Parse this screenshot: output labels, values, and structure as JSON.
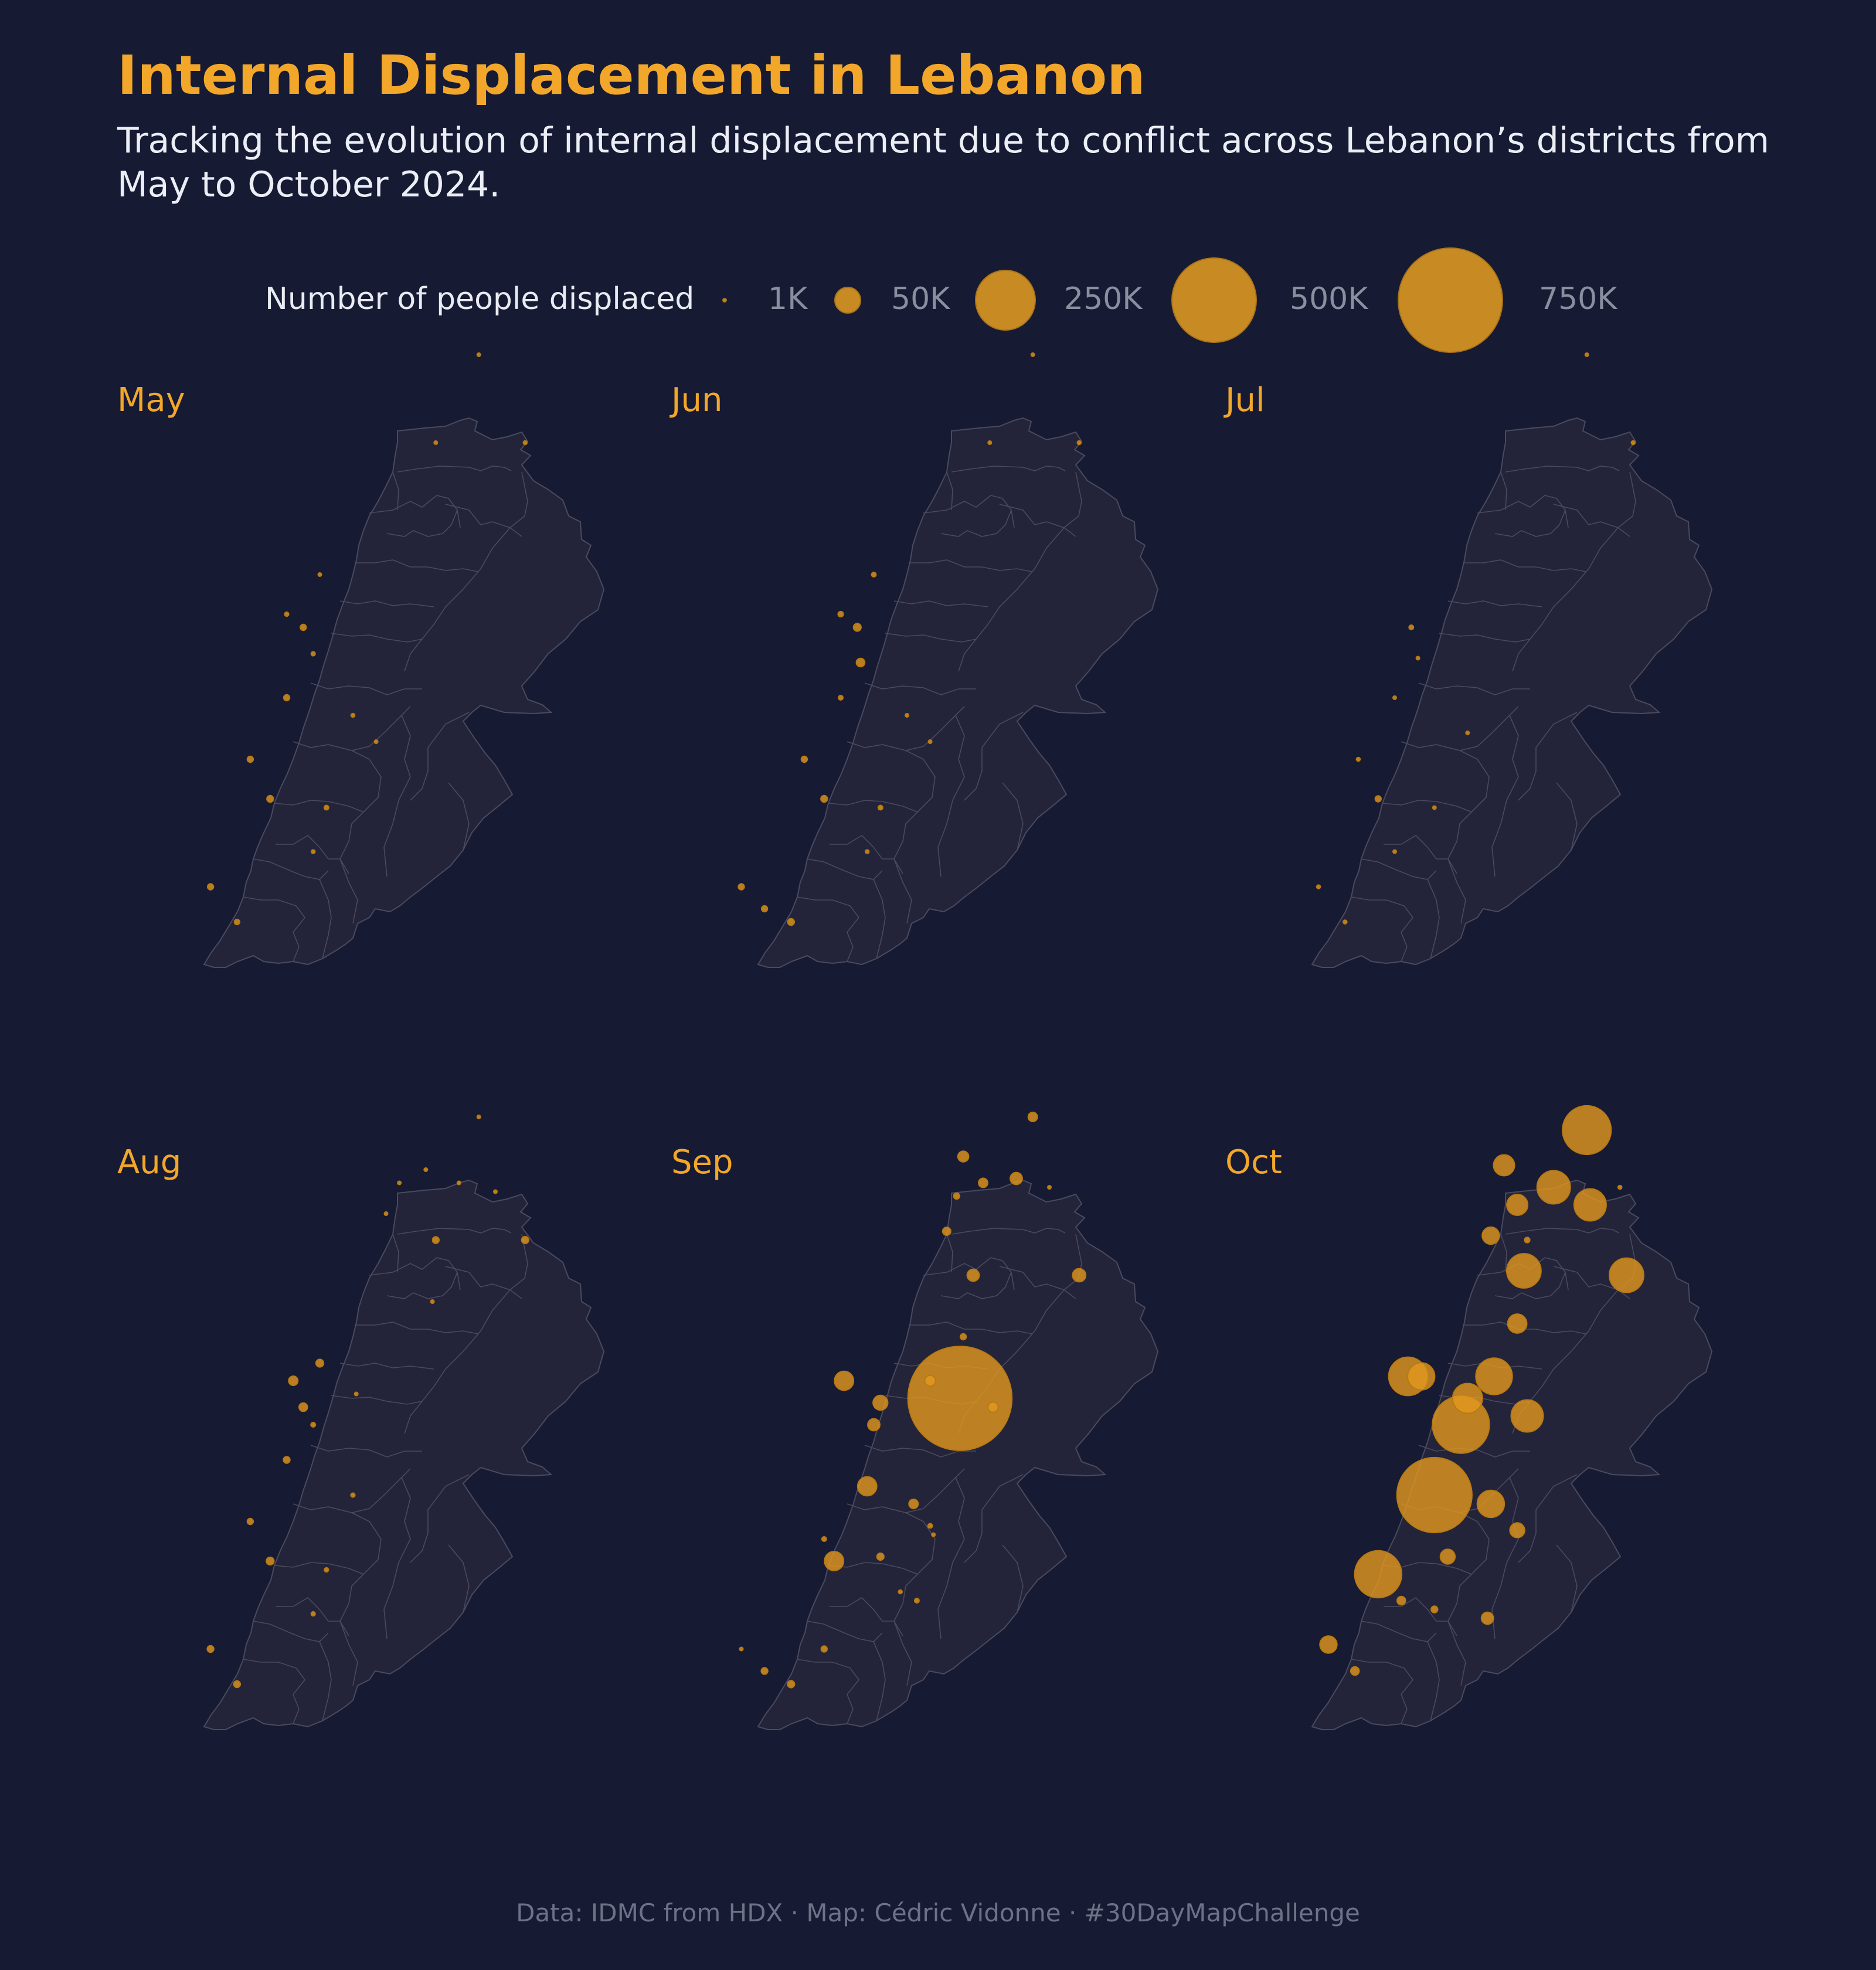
{
  "title": "Internal Displacement in Lebanon",
  "subtitle": "Tracking the evolution of internal displacement due to conflict across Lebanon’s districts from May to October 2024.",
  "legend": {
    "title": "Number of people displaced",
    "items": [
      {
        "label": "1K",
        "value": 1000
      },
      {
        "label": "50K",
        "value": 50000
      },
      {
        "label": "250K",
        "value": 250000
      },
      {
        "label": "500K",
        "value": 500000
      },
      {
        "label": "750K",
        "value": 750000
      }
    ]
  },
  "colors": {
    "background": "#161a33",
    "land": "#232439",
    "border": "#4a4a5e",
    "bubble": "#e3991f",
    "accent": "#f2a72a"
  },
  "panels": [
    {
      "month": "May",
      "points": [
        {
          "lon": 36.08,
          "lat": 34.48,
          "value": 400
        },
        {
          "lon": 35.95,
          "lat": 34.28,
          "value": 600
        },
        {
          "lon": 36.22,
          "lat": 34.28,
          "value": 1000
        },
        {
          "lon": 35.5,
          "lat": 33.89,
          "value": 1200
        },
        {
          "lon": 35.6,
          "lat": 33.98,
          "value": 700
        },
        {
          "lon": 35.55,
          "lat": 33.86,
          "value": 2500
        },
        {
          "lon": 35.58,
          "lat": 33.8,
          "value": 1200
        },
        {
          "lon": 35.5,
          "lat": 33.7,
          "value": 2500
        },
        {
          "lon": 35.7,
          "lat": 33.66,
          "value": 1000
        },
        {
          "lon": 35.77,
          "lat": 33.6,
          "value": 800
        },
        {
          "lon": 35.39,
          "lat": 33.56,
          "value": 2500
        },
        {
          "lon": 35.45,
          "lat": 33.47,
          "value": 3000
        },
        {
          "lon": 35.62,
          "lat": 33.45,
          "value": 1500
        },
        {
          "lon": 35.58,
          "lat": 33.35,
          "value": 1000
        },
        {
          "lon": 35.27,
          "lat": 33.27,
          "value": 2500
        },
        {
          "lon": 35.35,
          "lat": 33.19,
          "value": 2000
        }
      ]
    },
    {
      "month": "Jun",
      "points": [
        {
          "lon": 36.08,
          "lat": 34.48,
          "value": 400
        },
        {
          "lon": 35.95,
          "lat": 34.28,
          "value": 600
        },
        {
          "lon": 36.22,
          "lat": 34.28,
          "value": 1000
        },
        {
          "lon": 35.5,
          "lat": 33.89,
          "value": 2000
        },
        {
          "lon": 35.6,
          "lat": 33.98,
          "value": 1500
        },
        {
          "lon": 35.55,
          "lat": 33.86,
          "value": 4000
        },
        {
          "lon": 35.56,
          "lat": 33.78,
          "value": 5000
        },
        {
          "lon": 35.5,
          "lat": 33.7,
          "value": 1500
        },
        {
          "lon": 35.7,
          "lat": 33.66,
          "value": 800
        },
        {
          "lon": 35.77,
          "lat": 33.6,
          "value": 800
        },
        {
          "lon": 35.39,
          "lat": 33.56,
          "value": 2500
        },
        {
          "lon": 35.45,
          "lat": 33.47,
          "value": 3000
        },
        {
          "lon": 35.62,
          "lat": 33.45,
          "value": 1500
        },
        {
          "lon": 35.58,
          "lat": 33.35,
          "value": 1000
        },
        {
          "lon": 35.2,
          "lat": 33.27,
          "value": 2500
        },
        {
          "lon": 35.27,
          "lat": 33.22,
          "value": 2500
        },
        {
          "lon": 35.35,
          "lat": 33.19,
          "value": 3000
        }
      ]
    },
    {
      "month": "Jul",
      "points": [
        {
          "lon": 36.08,
          "lat": 34.48,
          "value": 400
        },
        {
          "lon": 36.22,
          "lat": 34.28,
          "value": 1000
        },
        {
          "lon": 35.55,
          "lat": 33.86,
          "value": 1500
        },
        {
          "lon": 35.57,
          "lat": 33.79,
          "value": 700
        },
        {
          "lon": 35.5,
          "lat": 33.7,
          "value": 700
        },
        {
          "lon": 35.72,
          "lat": 33.62,
          "value": 600
        },
        {
          "lon": 35.39,
          "lat": 33.56,
          "value": 1000
        },
        {
          "lon": 35.45,
          "lat": 33.47,
          "value": 2500
        },
        {
          "lon": 35.62,
          "lat": 33.45,
          "value": 700
        },
        {
          "lon": 35.5,
          "lat": 33.35,
          "value": 800
        },
        {
          "lon": 35.27,
          "lat": 33.27,
          "value": 1000
        },
        {
          "lon": 35.35,
          "lat": 33.19,
          "value": 1000
        }
      ]
    },
    {
      "month": "Aug",
      "points": [
        {
          "lon": 36.08,
          "lat": 34.48,
          "value": 800
        },
        {
          "lon": 36.02,
          "lat": 34.33,
          "value": 600
        },
        {
          "lon": 36.13,
          "lat": 34.31,
          "value": 700
        },
        {
          "lon": 35.92,
          "lat": 34.36,
          "value": 600
        },
        {
          "lon": 35.84,
          "lat": 34.33,
          "value": 500
        },
        {
          "lon": 35.8,
          "lat": 34.26,
          "value": 600
        },
        {
          "lon": 35.95,
          "lat": 34.2,
          "value": 3000
        },
        {
          "lon": 36.22,
          "lat": 34.2,
          "value": 3500
        },
        {
          "lon": 35.94,
          "lat": 34.06,
          "value": 800
        },
        {
          "lon": 35.52,
          "lat": 33.88,
          "value": 6000
        },
        {
          "lon": 35.6,
          "lat": 33.92,
          "value": 4000
        },
        {
          "lon": 35.55,
          "lat": 33.82,
          "value": 5000
        },
        {
          "lon": 35.71,
          "lat": 33.85,
          "value": 800
        },
        {
          "lon": 35.58,
          "lat": 33.78,
          "value": 1500
        },
        {
          "lon": 35.5,
          "lat": 33.7,
          "value": 3000
        },
        {
          "lon": 35.7,
          "lat": 33.62,
          "value": 1200
        },
        {
          "lon": 35.39,
          "lat": 33.56,
          "value": 2500
        },
        {
          "lon": 35.45,
          "lat": 33.47,
          "value": 4000
        },
        {
          "lon": 35.62,
          "lat": 33.45,
          "value": 1200
        },
        {
          "lon": 35.58,
          "lat": 33.35,
          "value": 1200
        },
        {
          "lon": 35.27,
          "lat": 33.27,
          "value": 3000
        },
        {
          "lon": 35.35,
          "lat": 33.19,
          "value": 3000
        }
      ]
    },
    {
      "month": "Sep",
      "points": [
        {
          "lon": 36.08,
          "lat": 34.48,
          "value": 6000
        },
        {
          "lon": 35.87,
          "lat": 34.39,
          "value": 8000
        },
        {
          "lon": 36.03,
          "lat": 34.34,
          "value": 10000
        },
        {
          "lon": 35.93,
          "lat": 34.33,
          "value": 6000
        },
        {
          "lon": 35.85,
          "lat": 34.3,
          "value": 2500
        },
        {
          "lon": 36.13,
          "lat": 34.32,
          "value": 500
        },
        {
          "lon": 35.82,
          "lat": 34.22,
          "value": 4500
        },
        {
          "lon": 35.9,
          "lat": 34.12,
          "value": 10000
        },
        {
          "lon": 36.22,
          "lat": 34.12,
          "value": 12000
        },
        {
          "lon": 35.87,
          "lat": 33.98,
          "value": 2500
        },
        {
          "lon": 35.86,
          "lat": 33.84,
          "value": 730000
        },
        {
          "lon": 35.51,
          "lat": 33.88,
          "value": 25000
        },
        {
          "lon": 35.62,
          "lat": 33.83,
          "value": 15000
        },
        {
          "lon": 35.77,
          "lat": 33.88,
          "value": 8000
        },
        {
          "lon": 35.96,
          "lat": 33.82,
          "value": 7000
        },
        {
          "lon": 35.6,
          "lat": 33.78,
          "value": 10000
        },
        {
          "lon": 35.58,
          "lat": 33.64,
          "value": 25000
        },
        {
          "lon": 35.72,
          "lat": 33.6,
          "value": 6000
        },
        {
          "lon": 35.77,
          "lat": 33.55,
          "value": 1500
        },
        {
          "lon": 35.78,
          "lat": 33.53,
          "value": 500
        },
        {
          "lon": 35.45,
          "lat": 33.52,
          "value": 1500
        },
        {
          "lon": 35.48,
          "lat": 33.47,
          "value": 25000
        },
        {
          "lon": 35.62,
          "lat": 33.48,
          "value": 3500
        },
        {
          "lon": 35.68,
          "lat": 33.4,
          "value": 1000
        },
        {
          "lon": 35.73,
          "lat": 33.38,
          "value": 1500
        },
        {
          "lon": 35.2,
          "lat": 33.27,
          "value": 700
        },
        {
          "lon": 35.27,
          "lat": 33.22,
          "value": 3000
        },
        {
          "lon": 35.35,
          "lat": 33.19,
          "value": 3500
        },
        {
          "lon": 35.45,
          "lat": 33.27,
          "value": 2500
        }
      ]
    },
    {
      "month": "Oct",
      "points": [
        {
          "lon": 36.08,
          "lat": 34.45,
          "value": 160000
        },
        {
          "lon": 35.83,
          "lat": 34.37,
          "value": 30000
        },
        {
          "lon": 35.98,
          "lat": 34.32,
          "value": 75000
        },
        {
          "lon": 35.87,
          "lat": 34.28,
          "value": 30000
        },
        {
          "lon": 36.09,
          "lat": 34.28,
          "value": 70000
        },
        {
          "lon": 36.18,
          "lat": 34.32,
          "value": 1000
        },
        {
          "lon": 35.79,
          "lat": 34.21,
          "value": 20000
        },
        {
          "lon": 35.9,
          "lat": 34.2,
          "value": 2000
        },
        {
          "lon": 35.89,
          "lat": 34.13,
          "value": 80000
        },
        {
          "lon": 36.2,
          "lat": 34.12,
          "value": 80000
        },
        {
          "lon": 35.87,
          "lat": 34.01,
          "value": 25000
        },
        {
          "lon": 35.54,
          "lat": 33.89,
          "value": 100000
        },
        {
          "lon": 35.58,
          "lat": 33.89,
          "value": 50000
        },
        {
          "lon": 35.8,
          "lat": 33.89,
          "value": 90000
        },
        {
          "lon": 35.72,
          "lat": 33.84,
          "value": 60000
        },
        {
          "lon": 35.7,
          "lat": 33.78,
          "value": 220000
        },
        {
          "lon": 35.9,
          "lat": 33.8,
          "value": 70000
        },
        {
          "lon": 35.62,
          "lat": 33.62,
          "value": 380000
        },
        {
          "lon": 35.79,
          "lat": 33.6,
          "value": 50000
        },
        {
          "lon": 35.87,
          "lat": 33.54,
          "value": 15000
        },
        {
          "lon": 35.66,
          "lat": 33.48,
          "value": 15000
        },
        {
          "lon": 35.45,
          "lat": 33.44,
          "value": 150000
        },
        {
          "lon": 35.62,
          "lat": 33.36,
          "value": 3000
        },
        {
          "lon": 35.52,
          "lat": 33.38,
          "value": 5000
        },
        {
          "lon": 35.78,
          "lat": 33.34,
          "value": 10000
        },
        {
          "lon": 35.3,
          "lat": 33.28,
          "value": 20000
        },
        {
          "lon": 35.38,
          "lat": 33.22,
          "value": 5000
        }
      ]
    }
  ],
  "footer": "Data: IDMC from HDX · Map: Cédric Vidonne · #30DayMapChallenge"
}
